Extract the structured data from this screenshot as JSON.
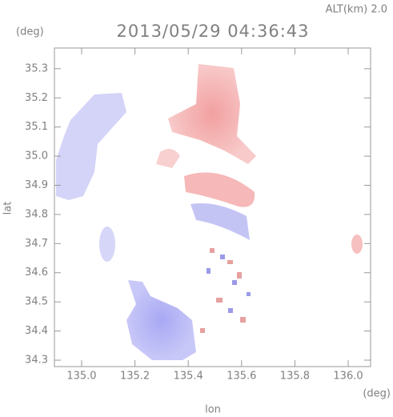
{
  "chart_data": {
    "type": "map",
    "title": "2013/05/29 04:36:43",
    "altitude_label": "ALT(km) 2.0",
    "xlabel": "lon",
    "ylabel": "lat",
    "x_unit": "(deg)",
    "y_unit": "(deg)",
    "xlim": [
      134.898,
      136.084
    ],
    "ylim": [
      34.278,
      35.371
    ],
    "xticks": [
      {
        "value": 135.0,
        "label": "135.0"
      },
      135.2,
      135.4,
      135.6,
      135.8,
      {
        "value": 136.0,
        "label": "136.0"
      }
    ],
    "yticks": [
      34.3,
      34.4,
      34.5,
      34.6,
      34.7,
      34.8,
      34.9,
      {
        "value": 35.0,
        "label": "35.0"
      },
      35.1,
      35.2,
      35.3
    ]
  }
}
